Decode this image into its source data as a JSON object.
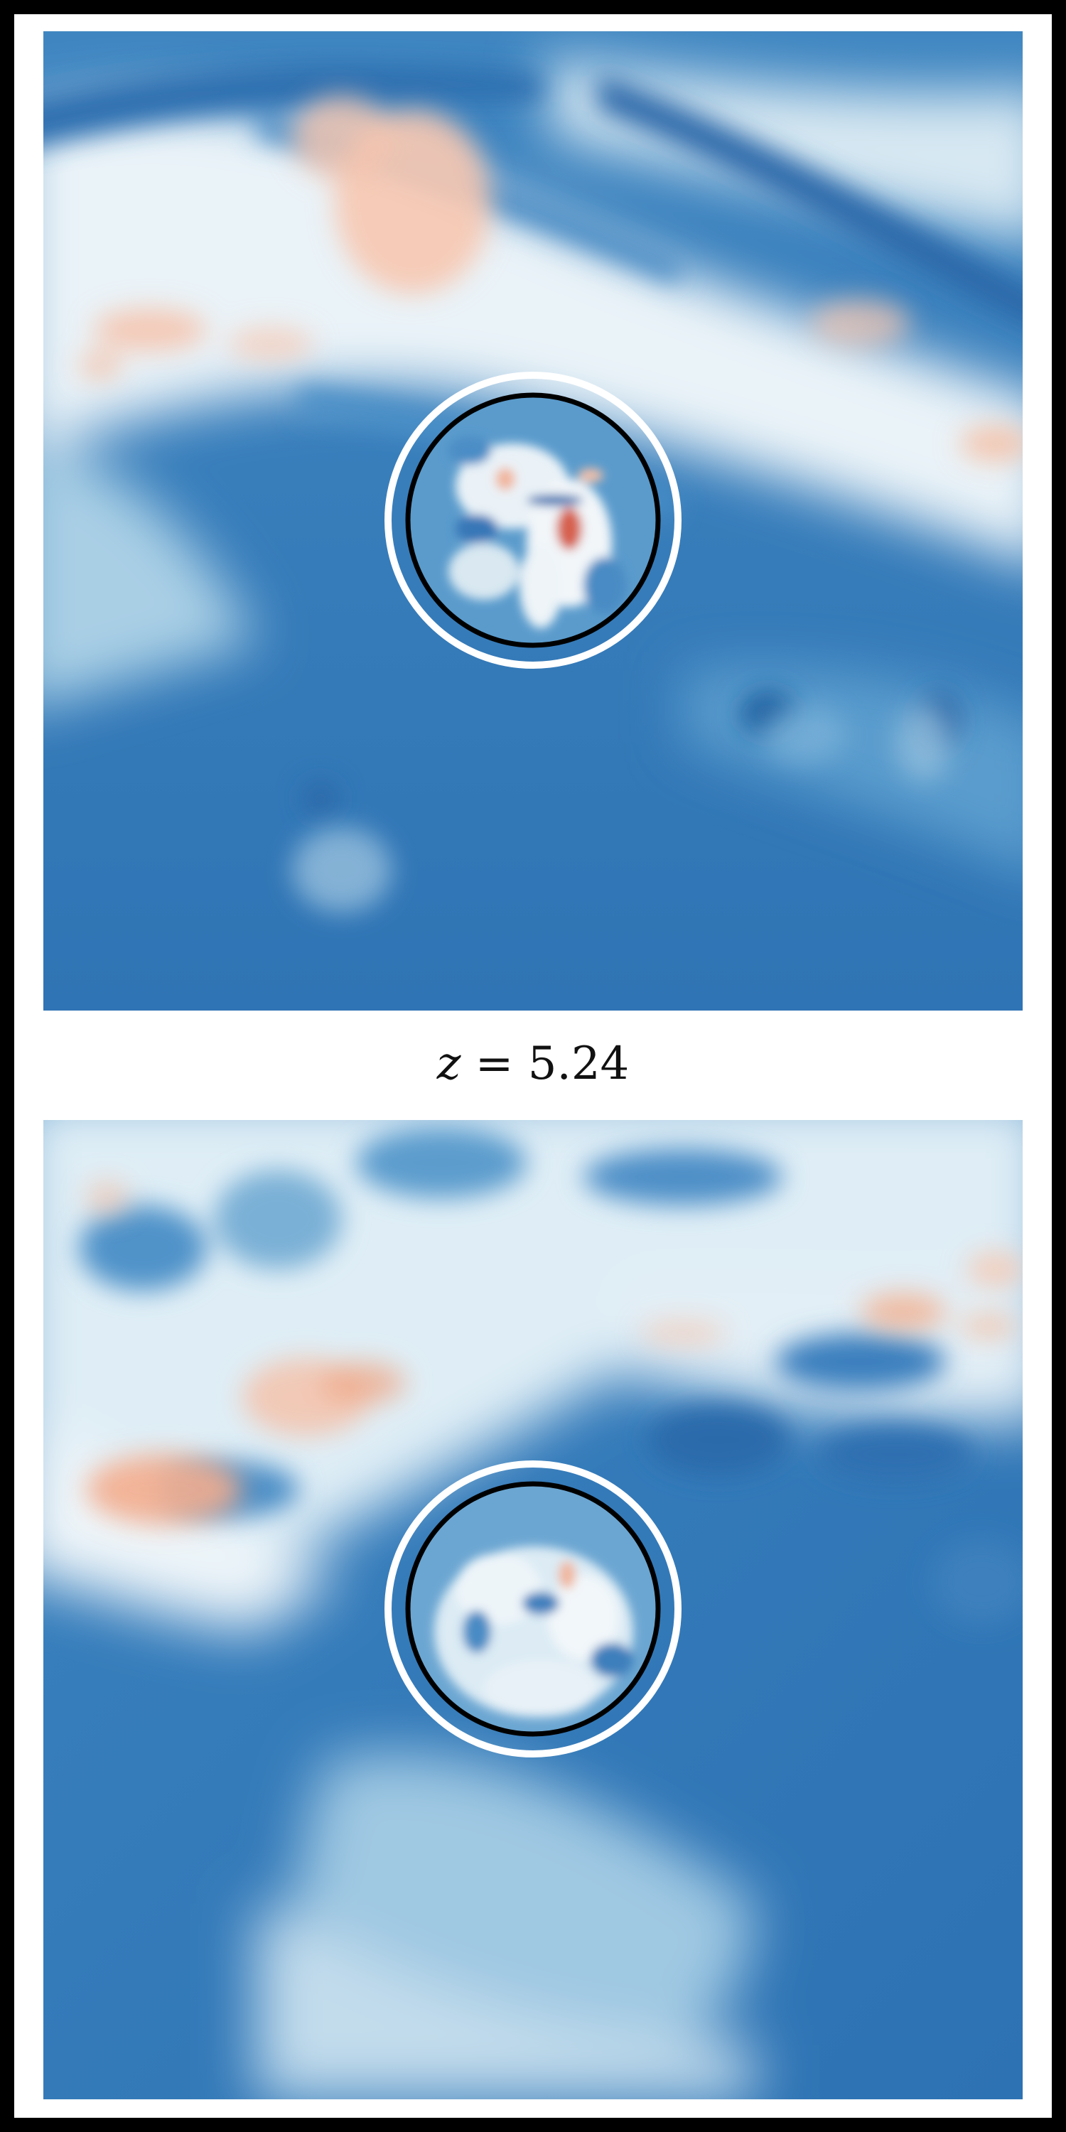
{
  "label": {
    "variable": "z",
    "equals": "=",
    "value": "5.24"
  },
  "colors": {
    "deep_blue": "#2166ac",
    "mid_blue": "#4393c3",
    "light_blue": "#92c5de",
    "white": "#f7f7f7",
    "light_red": "#fbb89a",
    "red": "#d6604d",
    "inner_circle": "#000000",
    "outer_circle": "#ffffff"
  }
}
